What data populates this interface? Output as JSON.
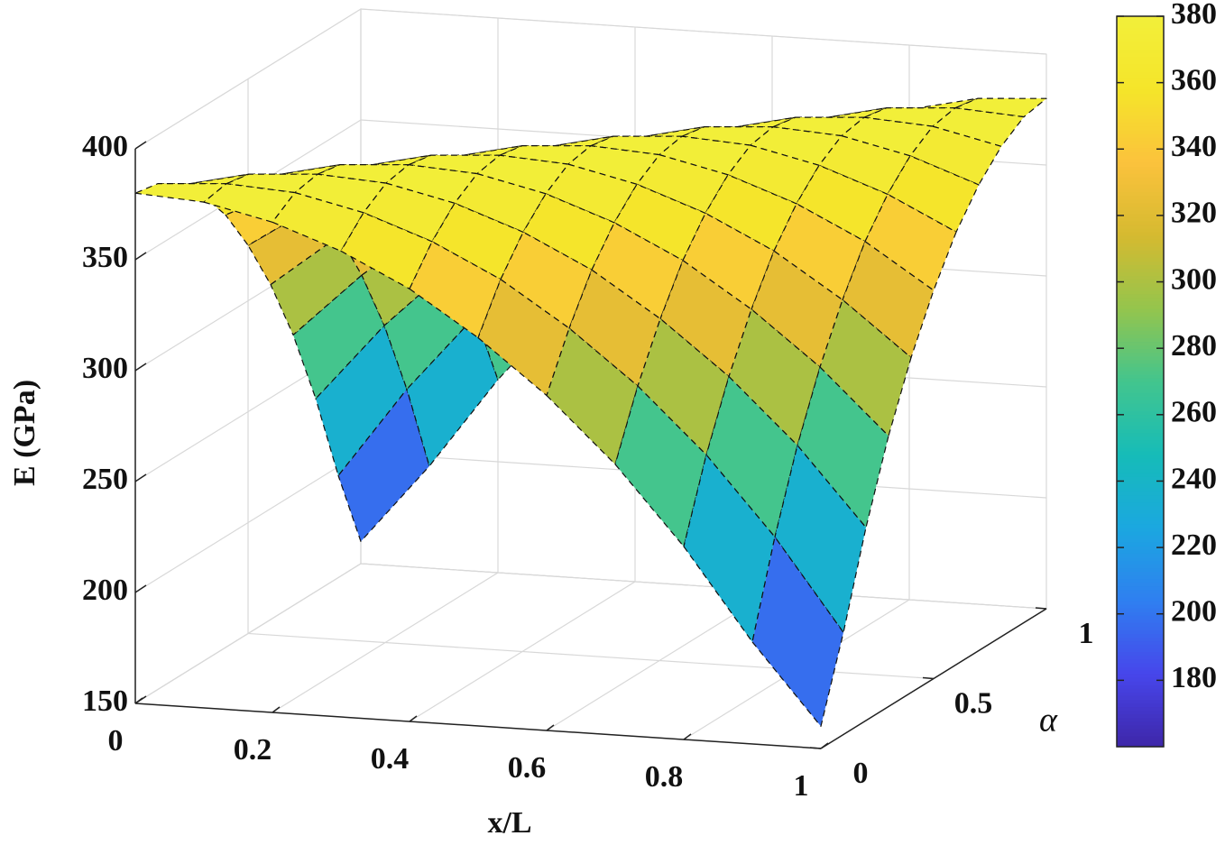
{
  "chart_data": {
    "type": "surface",
    "xlabel": "x/L",
    "ylabel": "α",
    "zlabel": "E (GPa)",
    "x": [
      0,
      0.1,
      0.2,
      0.3,
      0.4,
      0.5,
      0.6,
      0.7,
      0.8,
      0.9,
      1
    ],
    "y": [
      0,
      0.1,
      0.2,
      0.3,
      0.4,
      0.5,
      0.6,
      0.7,
      0.8,
      0.9,
      1
    ],
    "z": [
      [
        380,
        378,
        371,
        360,
        345,
        325,
        301,
        272,
        237,
        196,
        160
      ],
      [
        378,
        380,
        378,
        371,
        360,
        345,
        325,
        301,
        272,
        237,
        196
      ],
      [
        371,
        378,
        380,
        378,
        371,
        360,
        345,
        325,
        301,
        272,
        237
      ],
      [
        360,
        371,
        378,
        380,
        378,
        371,
        360,
        345,
        325,
        301,
        272
      ],
      [
        345,
        360,
        371,
        378,
        380,
        378,
        371,
        360,
        345,
        325,
        301
      ],
      [
        325,
        345,
        360,
        371,
        378,
        380,
        378,
        371,
        360,
        345,
        325
      ],
      [
        301,
        325,
        345,
        360,
        371,
        378,
        380,
        378,
        371,
        360,
        345
      ],
      [
        272,
        301,
        325,
        345,
        360,
        371,
        378,
        380,
        378,
        371,
        360
      ],
      [
        237,
        272,
        301,
        325,
        345,
        360,
        371,
        378,
        380,
        378,
        371
      ],
      [
        196,
        237,
        272,
        301,
        325,
        345,
        360,
        371,
        378,
        380,
        378
      ],
      [
        160,
        196,
        237,
        272,
        301,
        325,
        345,
        360,
        371,
        378,
        380
      ]
    ],
    "xlim": [
      0,
      1
    ],
    "xticks": [
      0,
      0.2,
      0.4,
      0.6,
      0.8,
      1
    ],
    "ylim": [
      0,
      1
    ],
    "yticks": [
      0,
      0.5,
      1
    ],
    "zlim": [
      150,
      400
    ],
    "zticks": [
      150,
      200,
      250,
      300,
      350,
      400
    ],
    "grid": true,
    "colormap": [
      "#3e26a8",
      "#4746eb",
      "#2f7ff0",
      "#1ba7e0",
      "#16bcb8",
      "#42c58e",
      "#94c54d",
      "#d5ba30",
      "#fbc23c",
      "#f5e52a",
      "#f2ef3a"
    ],
    "clim": [
      160,
      380
    ],
    "cticks": [
      180,
      200,
      220,
      240,
      260,
      280,
      300,
      320,
      340,
      360,
      380
    ]
  }
}
